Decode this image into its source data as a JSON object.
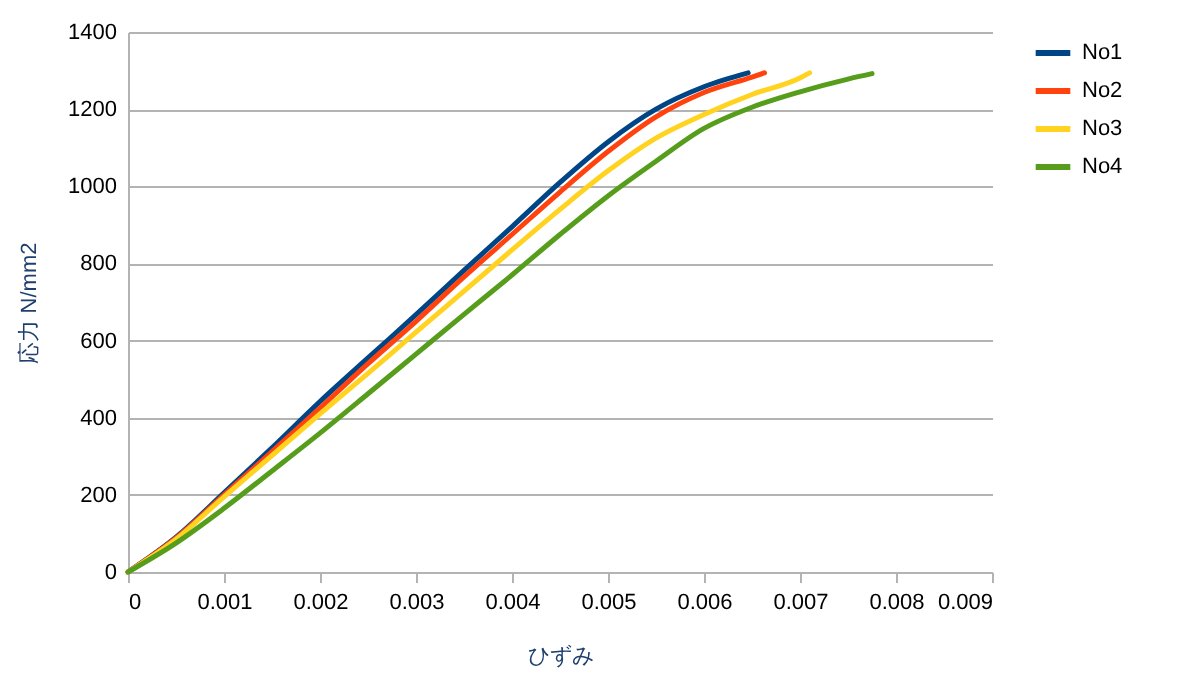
{
  "chart_data": {
    "type": "line",
    "xlabel": "ひずみ",
    "ylabel": "応力 N/mm2",
    "xlim": [
      0,
      0.009
    ],
    "xticks": [
      0,
      0.001,
      0.002,
      0.003,
      0.004,
      0.005,
      0.006,
      0.007,
      0.008,
      0.009
    ],
    "ylim": [
      0,
      1400
    ],
    "yticks": [
      0,
      200,
      400,
      600,
      800,
      1000,
      1200,
      1400
    ],
    "grid": "y",
    "legend": "right",
    "marker": "none",
    "line_style": "solid",
    "series": [
      {
        "name": "No1",
        "color": "#004586",
        "x": [
          0,
          0.0005,
          0.001,
          0.0015,
          0.002,
          0.0025,
          0.003,
          0.0035,
          0.004,
          0.0045,
          0.005,
          0.0055,
          0.006,
          0.00646
        ],
        "values": [
          0,
          90,
          205,
          322,
          442,
          555,
          667,
          782,
          895,
          1010,
          1115,
          1200,
          1258,
          1294
        ]
      },
      {
        "name": "No2",
        "color": "#ff420e",
        "x": [
          0,
          0.0005,
          0.001,
          0.0015,
          0.002,
          0.0025,
          0.003,
          0.0035,
          0.004,
          0.0045,
          0.005,
          0.0055,
          0.006,
          0.0065,
          0.00663
        ],
        "values": [
          0,
          88,
          200,
          312,
          425,
          540,
          650,
          765,
          875,
          985,
          1090,
          1180,
          1243,
          1283,
          1294
        ]
      },
      {
        "name": "No3",
        "color": "#ffd320",
        "x": [
          0,
          0.0005,
          0.001,
          0.0015,
          0.002,
          0.0025,
          0.003,
          0.0035,
          0.004,
          0.0045,
          0.005,
          0.0055,
          0.006,
          0.0065,
          0.007,
          0.0071
        ],
        "values": [
          0,
          85,
          195,
          302,
          410,
          515,
          622,
          728,
          835,
          940,
          1040,
          1125,
          1186,
          1238,
          1281,
          1294
        ]
      },
      {
        "name": "No4",
        "color": "#579d1c",
        "x": [
          0,
          0.0005,
          0.001,
          0.0015,
          0.002,
          0.0025,
          0.003,
          0.0035,
          0.004,
          0.0045,
          0.005,
          0.0055,
          0.006,
          0.0065,
          0.007,
          0.0075,
          0.00775
        ],
        "values": [
          0,
          75,
          165,
          262,
          360,
          462,
          565,
          668,
          770,
          875,
          975,
          1065,
          1150,
          1205,
          1245,
          1278,
          1292
        ]
      }
    ]
  }
}
